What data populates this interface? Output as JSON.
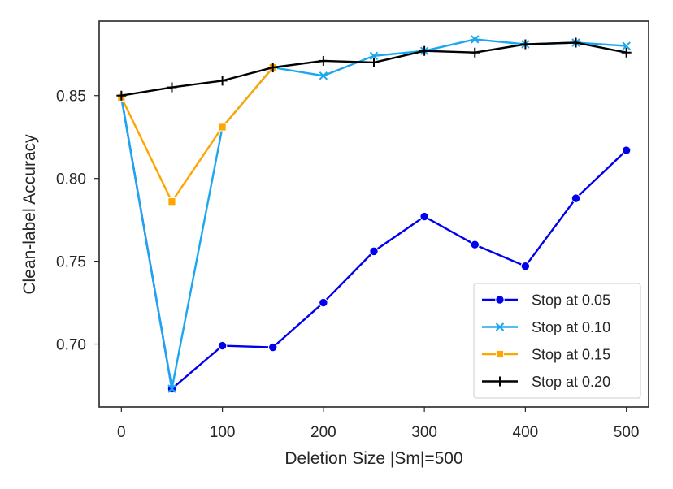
{
  "chart_data": {
    "type": "line",
    "title": "",
    "xlabel": "Deletion Size |Sm|=500",
    "ylabel": "Clean-label Accuracy",
    "xlim": [
      -22,
      522
    ],
    "ylim": [
      0.662,
      0.895
    ],
    "xticks": [
      0,
      100,
      200,
      300,
      400,
      500
    ],
    "xtick_labels": [
      "0",
      "100",
      "200",
      "300",
      "400",
      "500"
    ],
    "yticks": [
      0.7,
      0.75,
      0.8,
      0.85
    ],
    "ytick_labels": [
      "0.70",
      "0.75",
      "0.80",
      "0.85"
    ],
    "grid": false,
    "legend_position": "lower-right",
    "series": [
      {
        "name": "Stop at 0.05",
        "color": "#0000ee",
        "marker": "circle",
        "x": [
          0,
          50,
          100,
          150,
          200,
          250,
          300,
          350,
          400,
          450,
          500
        ],
        "values": [
          0.849,
          0.673,
          0.699,
          0.698,
          0.725,
          0.756,
          0.777,
          0.76,
          0.747,
          0.788,
          0.817
        ]
      },
      {
        "name": "Stop at 0.10",
        "color": "#1aa7f0",
        "marker": "x",
        "x": [
          0,
          50,
          100,
          150,
          200,
          250,
          300,
          350,
          400,
          450,
          500
        ],
        "values": [
          0.849,
          0.673,
          0.831,
          0.867,
          0.862,
          0.874,
          0.877,
          0.884,
          0.881,
          0.882,
          0.88
        ]
      },
      {
        "name": "Stop at 0.15",
        "color": "#ffa500",
        "marker": "square",
        "x": [
          0,
          50,
          100,
          150
        ],
        "values": [
          0.849,
          0.786,
          0.831,
          0.867
        ]
      },
      {
        "name": "Stop at 0.20",
        "color": "#000000",
        "marker": "plus",
        "x": [
          0,
          50,
          100,
          150,
          200,
          250,
          300,
          350,
          400,
          450,
          500
        ],
        "values": [
          0.85,
          0.855,
          0.859,
          0.867,
          0.871,
          0.87,
          0.877,
          0.876,
          0.881,
          0.882,
          0.876
        ]
      }
    ]
  }
}
